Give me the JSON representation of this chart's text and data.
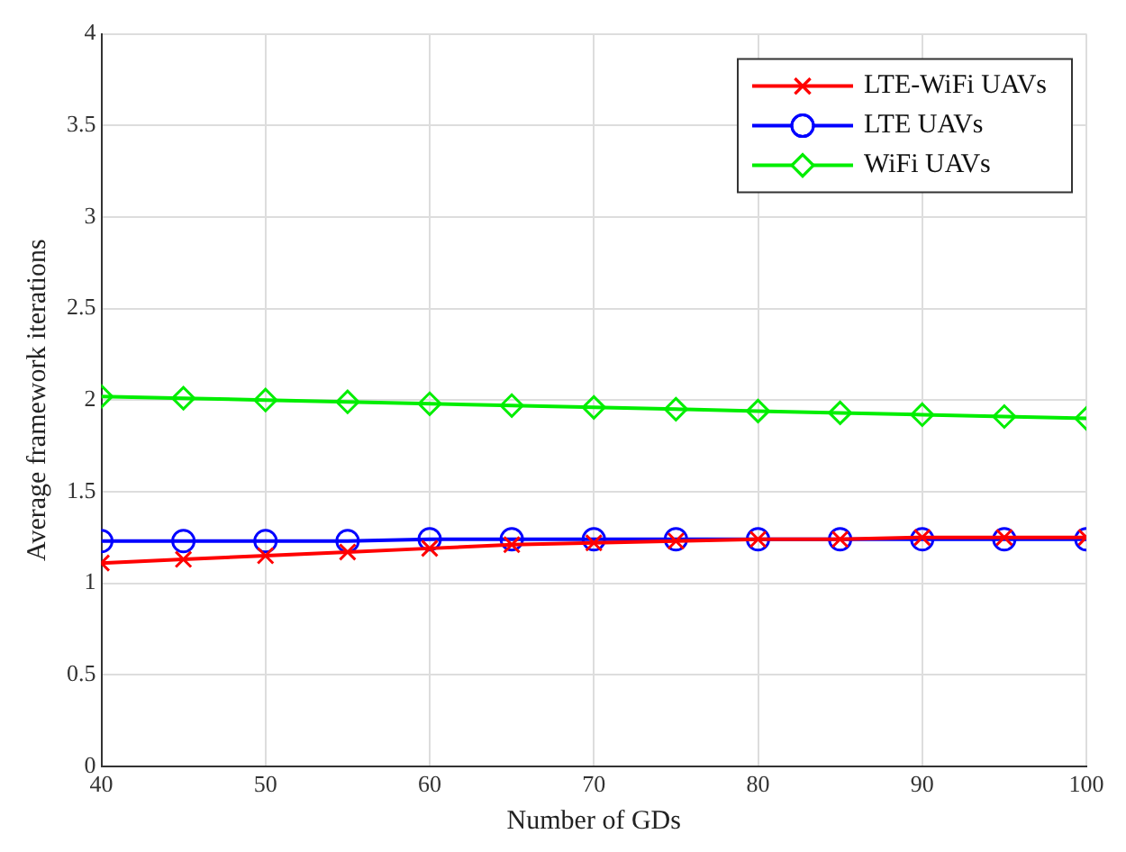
{
  "chart_data": {
    "type": "line",
    "xlabel": "Number of GDs",
    "ylabel": "Average framework iterations",
    "x": [
      40,
      45,
      50,
      55,
      60,
      65,
      70,
      75,
      80,
      85,
      90,
      95,
      100
    ],
    "series": [
      {
        "name": "LTE-WiFi UAVs",
        "color": "#ff0000",
        "marker": "cross",
        "values": [
          1.11,
          1.13,
          1.15,
          1.17,
          1.19,
          1.21,
          1.22,
          1.23,
          1.24,
          1.24,
          1.25,
          1.25,
          1.25
        ]
      },
      {
        "name": "LTE UAVs",
        "color": "#0000ff",
        "marker": "circle",
        "values": [
          1.23,
          1.23,
          1.23,
          1.23,
          1.24,
          1.24,
          1.24,
          1.24,
          1.24,
          1.24,
          1.24,
          1.24,
          1.24
        ]
      },
      {
        "name": "WiFi UAVs",
        "color": "#00ee00",
        "marker": "diamond",
        "values": [
          2.02,
          2.01,
          2.0,
          1.99,
          1.98,
          1.97,
          1.96,
          1.95,
          1.94,
          1.93,
          1.92,
          1.91,
          1.9
        ]
      }
    ],
    "xlim": [
      40,
      100
    ],
    "xticks": [
      40,
      50,
      60,
      70,
      80,
      90,
      100
    ],
    "ylim": [
      0,
      4
    ],
    "yticks": [
      0,
      0.5,
      1,
      1.5,
      2,
      2.5,
      3,
      3.5,
      4
    ],
    "grid": true,
    "legend": "top right",
    "line_style": "solid"
  }
}
